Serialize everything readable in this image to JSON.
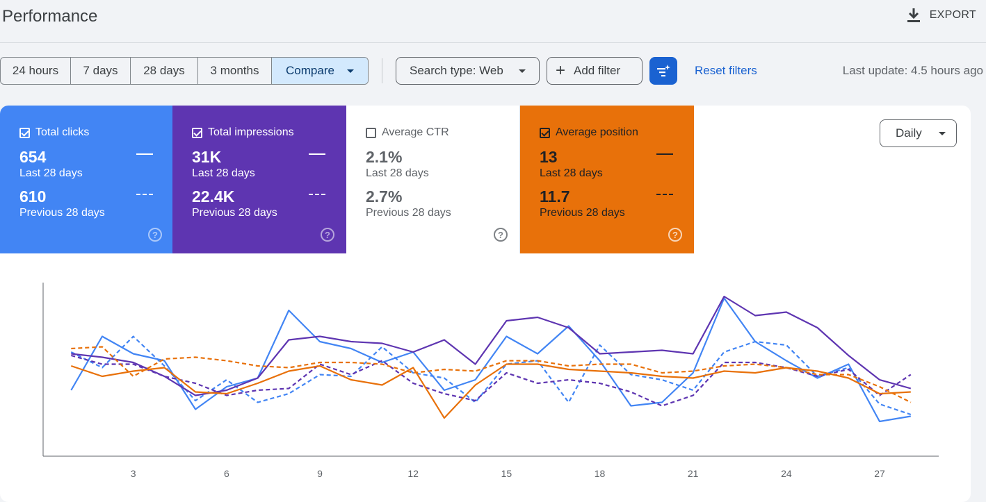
{
  "header": {
    "title": "Performance",
    "export_label": "EXPORT",
    "export_icon": "download-icon"
  },
  "toolbar": {
    "ranges": [
      "24 hours",
      "7 days",
      "28 days",
      "3 months"
    ],
    "compare_label": "Compare",
    "compare_active": true,
    "search_type": "Search type: Web",
    "add_filter": "Add filter",
    "reset_filters": "Reset filters",
    "last_update": "Last update: 4.5 hours ago",
    "accent_color": "#1a62d1"
  },
  "metrics": [
    {
      "name": "Total clicks",
      "checked": true,
      "current": "654",
      "current_label": "Last 28 days",
      "previous": "610",
      "previous_label": "Previous 28 days",
      "color": "#4285f4"
    },
    {
      "name": "Total impressions",
      "checked": true,
      "current": "31K",
      "current_label": "Last 28 days",
      "previous": "22.4K",
      "previous_label": "Previous 28 days",
      "color": "#5e35b1"
    },
    {
      "name": "Average CTR",
      "checked": false,
      "current": "2.1%",
      "current_label": "Last 28 days",
      "previous": "2.7%",
      "previous_label": "Previous 28 days",
      "color": "#ffffff"
    },
    {
      "name": "Average position",
      "checked": true,
      "current": "13",
      "current_label": "Last 28 days",
      "previous": "11.7",
      "previous_label": "Previous 28 days",
      "color": "#e8710a"
    }
  ],
  "granularity": "Daily",
  "chart_data": {
    "type": "line",
    "x": [
      1,
      2,
      3,
      4,
      5,
      6,
      7,
      8,
      9,
      10,
      11,
      12,
      13,
      14,
      15,
      16,
      17,
      18,
      19,
      20,
      21,
      22,
      23,
      24,
      25,
      26,
      27,
      28
    ],
    "x_ticks": [
      3,
      6,
      9,
      12,
      15,
      18,
      21,
      24,
      27
    ],
    "xlim": [
      0.1,
      28.9
    ],
    "ylim": [
      0,
      100
    ],
    "series": [
      {
        "key": "clicks_current",
        "color": "#4285f4",
        "dashed": false,
        "values": [
          38,
          69,
          59,
          55,
          27,
          40,
          45,
          84,
          66,
          62,
          54,
          60,
          38,
          44,
          69,
          59,
          75,
          55,
          29,
          31,
          48,
          91,
          66,
          55,
          45,
          53,
          20,
          23
        ]
      },
      {
        "key": "clicks_previous",
        "color": "#4285f4",
        "dashed": true,
        "values": [
          60,
          51,
          69,
          52,
          32,
          44,
          31,
          36,
          47,
          46,
          63,
          48,
          45,
          31,
          53,
          55,
          31,
          64,
          47,
          44,
          38,
          60,
          66,
          64,
          46,
          51,
          30,
          24
        ]
      },
      {
        "key": "impressions_current",
        "color": "#5e35b1",
        "dashed": false,
        "values": [
          59,
          57,
          54,
          46,
          35,
          38,
          45,
          67,
          69,
          66,
          65,
          60,
          67,
          53,
          78,
          80,
          74,
          59,
          60,
          61,
          59,
          92,
          81,
          83,
          74,
          58,
          44,
          39
        ]
      },
      {
        "key": "impressions_previous",
        "color": "#5e35b1",
        "dashed": true,
        "values": [
          58,
          53,
          53,
          46,
          42,
          35,
          38,
          39,
          53,
          47,
          55,
          42,
          36,
          32,
          48,
          42,
          44,
          42,
          37,
          29,
          35,
          54,
          54,
          51,
          46,
          50,
          35,
          47
        ]
      },
      {
        "key": "position_current",
        "color": "#e8710a",
        "dashed": false,
        "values": [
          52,
          46,
          49,
          51,
          37,
          36,
          42,
          49,
          52,
          44,
          41,
          51,
          22,
          41,
          53,
          53,
          50,
          49,
          48,
          46,
          45,
          49,
          48,
          51,
          49,
          45,
          36,
          37
        ]
      },
      {
        "key": "position_previous",
        "color": "#e8710a",
        "dashed": true,
        "values": [
          62,
          63,
          46,
          56,
          57,
          55,
          52,
          51,
          54,
          54,
          53,
          48,
          50,
          49,
          55,
          55,
          52,
          53,
          53,
          48,
          49,
          52,
          53,
          51,
          47,
          47,
          40,
          31
        ]
      }
    ]
  }
}
